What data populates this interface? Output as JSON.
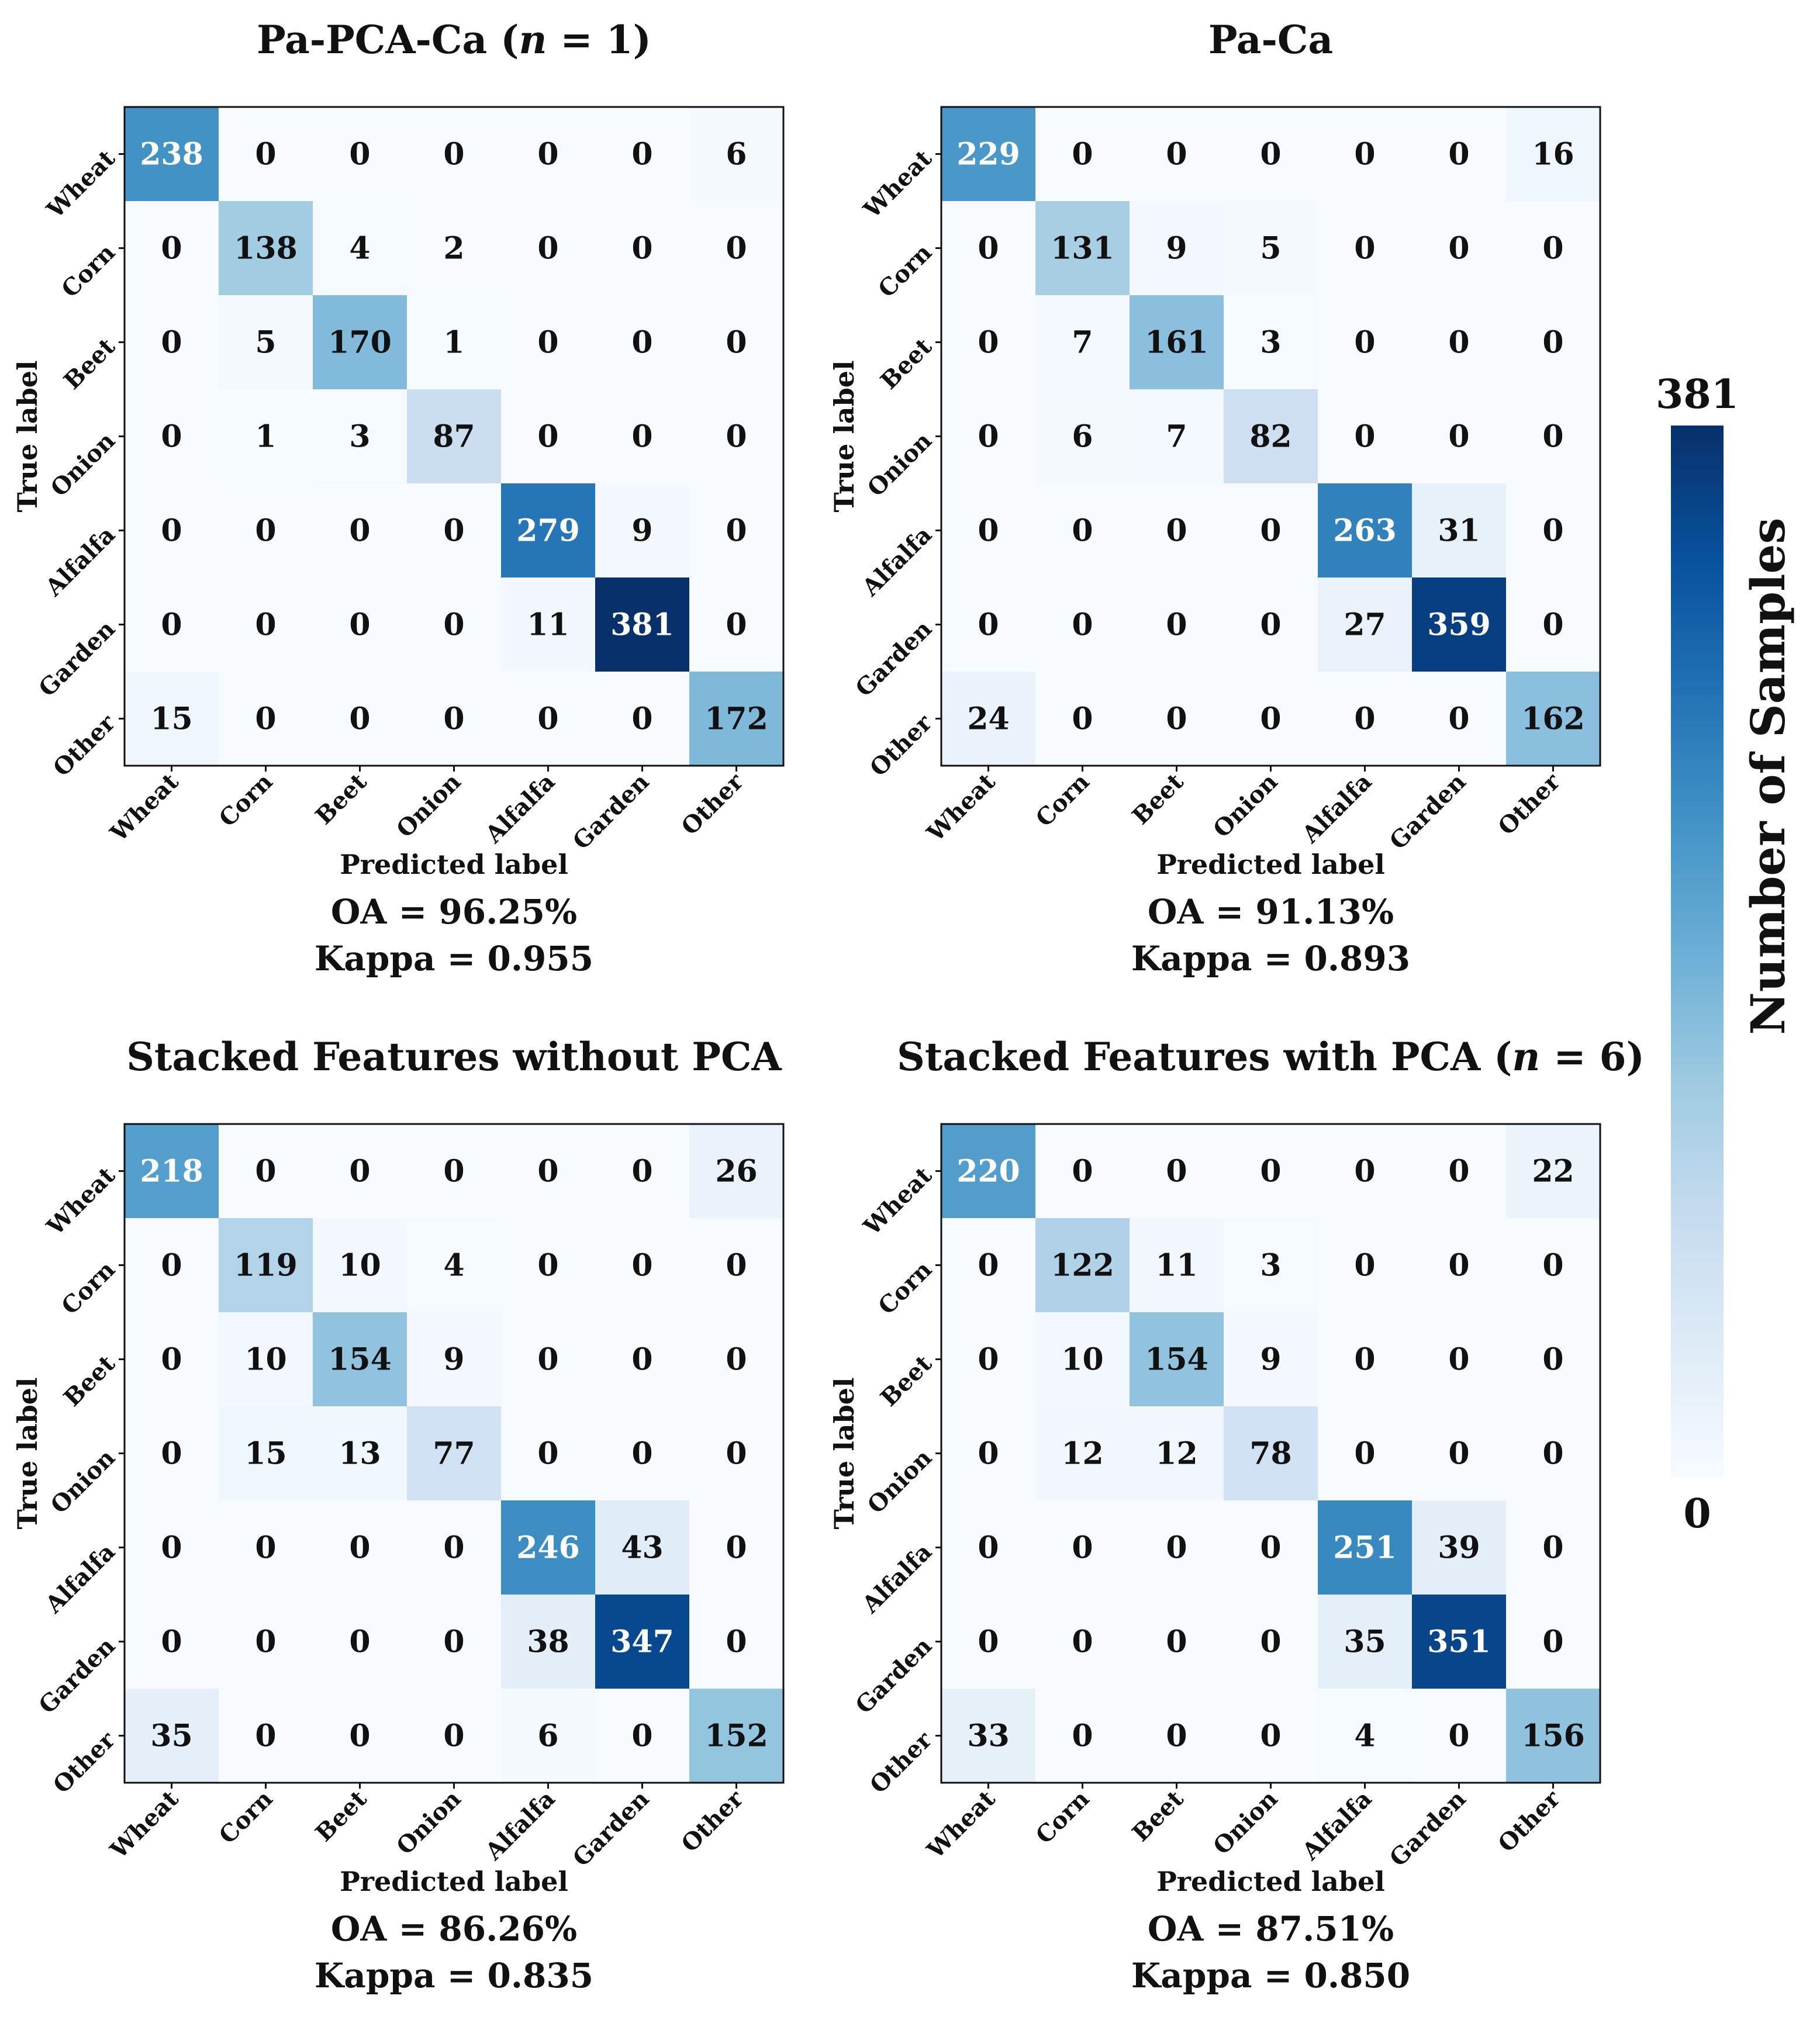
{
  "chart_data": [
    {
      "type": "heatmap",
      "title": "Pa-PCA-Ca (n = 1)",
      "title_parts": [
        "Pa-PCA-Ca (",
        "n",
        " = 1)"
      ],
      "xlabel": "Predicted label",
      "ylabel": "True label",
      "categories": [
        "Wheat",
        "Corn",
        "Beet",
        "Onion",
        "Alfalfa",
        "Garden",
        "Other"
      ],
      "matrix": [
        [
          238,
          0,
          0,
          0,
          0,
          0,
          6
        ],
        [
          0,
          138,
          4,
          2,
          0,
          0,
          0
        ],
        [
          0,
          5,
          170,
          1,
          0,
          0,
          0
        ],
        [
          0,
          1,
          3,
          87,
          0,
          0,
          0
        ],
        [
          0,
          0,
          0,
          0,
          279,
          9,
          0
        ],
        [
          0,
          0,
          0,
          0,
          11,
          381,
          0
        ],
        [
          15,
          0,
          0,
          0,
          0,
          0,
          172
        ]
      ],
      "oa_text": "OA = 96.25%",
      "kappa_text": "Kappa = 0.955"
    },
    {
      "type": "heatmap",
      "title": "Pa-Ca",
      "title_parts": [
        "Pa-Ca"
      ],
      "xlabel": "Predicted label",
      "ylabel": "True label",
      "categories": [
        "Wheat",
        "Corn",
        "Beet",
        "Onion",
        "Alfalfa",
        "Garden",
        "Other"
      ],
      "matrix": [
        [
          229,
          0,
          0,
          0,
          0,
          0,
          16
        ],
        [
          0,
          131,
          9,
          5,
          0,
          0,
          0
        ],
        [
          0,
          7,
          161,
          3,
          0,
          0,
          0
        ],
        [
          0,
          6,
          7,
          82,
          0,
          0,
          0
        ],
        [
          0,
          0,
          0,
          0,
          263,
          31,
          0
        ],
        [
          0,
          0,
          0,
          0,
          27,
          359,
          0
        ],
        [
          24,
          0,
          0,
          0,
          0,
          0,
          162
        ]
      ],
      "oa_text": "OA = 91.13%",
      "kappa_text": "Kappa = 0.893"
    },
    {
      "type": "heatmap",
      "title": "Stacked Features without PCA",
      "title_parts": [
        "Stacked Features without PCA"
      ],
      "xlabel": "Predicted label",
      "ylabel": "True label",
      "categories": [
        "Wheat",
        "Corn",
        "Beet",
        "Onion",
        "Alfalfa",
        "Garden",
        "Other"
      ],
      "matrix": [
        [
          218,
          0,
          0,
          0,
          0,
          0,
          26
        ],
        [
          0,
          119,
          10,
          4,
          0,
          0,
          0
        ],
        [
          0,
          10,
          154,
          9,
          0,
          0,
          0
        ],
        [
          0,
          15,
          13,
          77,
          0,
          0,
          0
        ],
        [
          0,
          0,
          0,
          0,
          246,
          43,
          0
        ],
        [
          0,
          0,
          0,
          0,
          38,
          347,
          0
        ],
        [
          35,
          0,
          0,
          0,
          6,
          0,
          152
        ]
      ],
      "oa_text": "OA = 86.26%",
      "kappa_text": "Kappa = 0.835"
    },
    {
      "type": "heatmap",
      "title": "Stacked Features with PCA (n = 6)",
      "title_parts": [
        "Stacked Features with PCA (",
        "n",
        " = 6)"
      ],
      "xlabel": "Predicted label",
      "ylabel": "True label",
      "categories": [
        "Wheat",
        "Corn",
        "Beet",
        "Onion",
        "Alfalfa",
        "Garden",
        "Other"
      ],
      "matrix": [
        [
          220,
          0,
          0,
          0,
          0,
          0,
          22
        ],
        [
          0,
          122,
          11,
          3,
          0,
          0,
          0
        ],
        [
          0,
          10,
          154,
          9,
          0,
          0,
          0
        ],
        [
          0,
          12,
          12,
          78,
          0,
          0,
          0
        ],
        [
          0,
          0,
          0,
          0,
          251,
          39,
          0
        ],
        [
          0,
          0,
          0,
          0,
          35,
          351,
          0
        ],
        [
          33,
          0,
          0,
          0,
          4,
          0,
          156
        ]
      ],
      "oa_text": "OA = 87.51%",
      "kappa_text": "Kappa = 0.850"
    }
  ],
  "colorbar": {
    "label": "Number of Samples",
    "min": 0,
    "max": 381,
    "min_label": "0",
    "max_label": "381",
    "colors": [
      "#f7fbff",
      "#deebf7",
      "#c6dbef",
      "#9ecae1",
      "#6baed6",
      "#4292c6",
      "#2171b5",
      "#08519c",
      "#08306b"
    ]
  }
}
